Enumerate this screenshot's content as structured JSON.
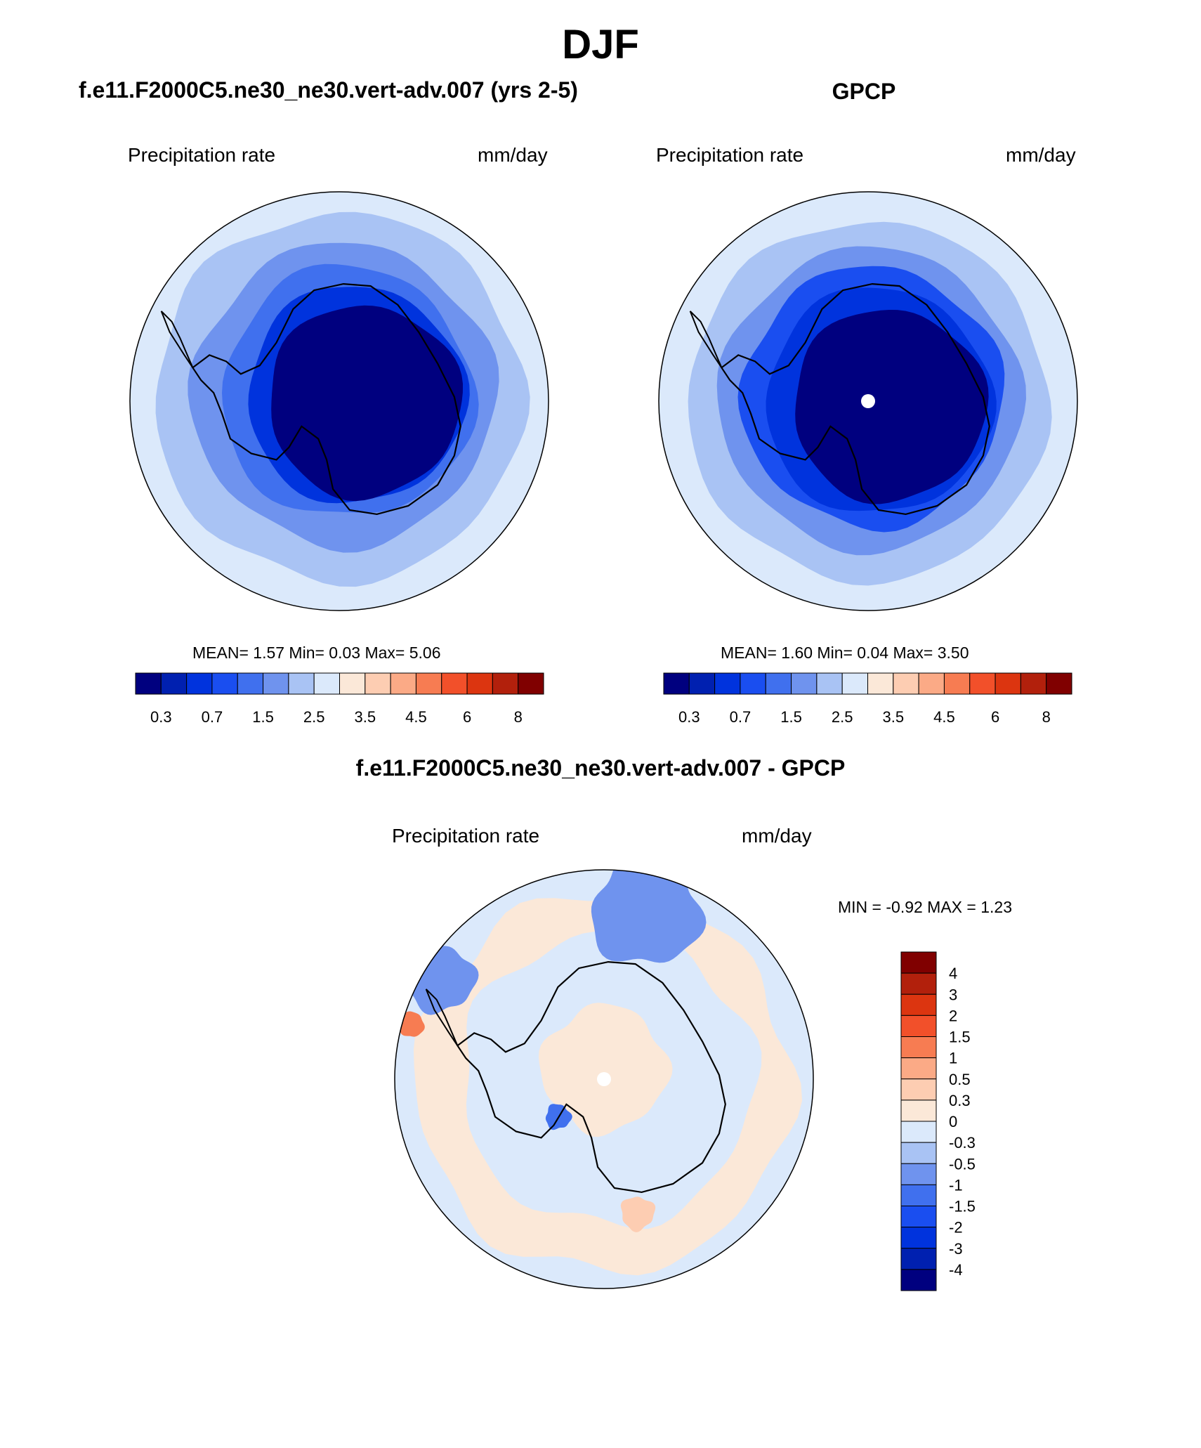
{
  "title": "DJF",
  "panels": [
    {
      "title": "f.e11.F2000C5.ne30_ne30.vert-adv.007 (yrs 2-5)",
      "left_label": "Precipitation rate",
      "right_label": "mm/day",
      "stats": "MEAN=   1.57  Min=   0.03  Max=   5.06"
    },
    {
      "title": "GPCP",
      "left_label": "Precipitation rate",
      "right_label": "mm/day",
      "stats": "MEAN=   1.60  Min=   0.04  Max=   3.50"
    },
    {
      "title": "f.e11.F2000C5.ne30_ne30.vert-adv.007 - GPCP",
      "left_label": "Precipitation rate",
      "right_label": "mm/day",
      "stats": "MIN =  -0.92 MAX =   1.23"
    }
  ],
  "colors": {
    "abs_scale": [
      "#00007f",
      "#0020b0",
      "#0033dd",
      "#1a4ef0",
      "#4070ee",
      "#6f93ee",
      "#a9c3f4",
      "#dbe9fb",
      "#fbe8d8",
      "#fdcdb2",
      "#fbaa86",
      "#f77c52",
      "#f2502a",
      "#dc3510",
      "#b2200c",
      "#800000"
    ],
    "diff_scale": [
      "#00007f",
      "#0020b0",
      "#0033dd",
      "#1a4ef0",
      "#4070ee",
      "#6f93ee",
      "#a9c3f4",
      "#dbe9fb",
      "#fbe8d8",
      "#fdcdb2",
      "#fbaa86",
      "#f77c52",
      "#f2502a",
      "#dc3510",
      "#b2200c",
      "#800000"
    ],
    "coastline": "#000000",
    "pole_marker": "#ffffff"
  },
  "chart_data": [
    {
      "type": "heatmap",
      "projection": "south-polar-stereographic",
      "title": "f.e11.F2000C5.ne30_ne30.vert-adv.007 (yrs 2-5)",
      "variable": "Precipitation rate",
      "units": "mm/day",
      "mean": 1.57,
      "min": 0.03,
      "max": 5.06,
      "levels": [
        0.3,
        0.5,
        0.7,
        1,
        1.5,
        2,
        2.5,
        3,
        3.5,
        4,
        4.5,
        5,
        6,
        7,
        8
      ],
      "colorbar_ticks": [
        "0.3",
        "0.7",
        "1.5",
        "2.5",
        "3.5",
        "4.5",
        "6",
        "8"
      ],
      "colorbar_orientation": "horizontal"
    },
    {
      "type": "heatmap",
      "projection": "south-polar-stereographic",
      "title": "GPCP",
      "variable": "Precipitation rate",
      "units": "mm/day",
      "mean": 1.6,
      "min": 0.04,
      "max": 3.5,
      "levels": [
        0.3,
        0.5,
        0.7,
        1,
        1.5,
        2,
        2.5,
        3,
        3.5,
        4,
        4.5,
        5,
        6,
        7,
        8
      ],
      "colorbar_ticks": [
        "0.3",
        "0.7",
        "1.5",
        "2.5",
        "3.5",
        "4.5",
        "6",
        "8"
      ],
      "colorbar_orientation": "horizontal"
    },
    {
      "type": "heatmap",
      "projection": "south-polar-stereographic",
      "title": "f.e11.F2000C5.ne30_ne30.vert-adv.007 - GPCP",
      "variable": "Precipitation rate",
      "units": "mm/day",
      "min": -0.92,
      "max": 1.23,
      "levels": [
        -4,
        -3,
        -2,
        -1.5,
        -1,
        -0.5,
        -0.3,
        0,
        0.3,
        0.5,
        1,
        1.5,
        2,
        3,
        4
      ],
      "colorbar_ticks": [
        "4",
        "3",
        "2",
        "1.5",
        "1",
        "0.5",
        "0.3",
        "0",
        "-0.3",
        "-0.5",
        "-1",
        "-1.5",
        "-2",
        "-3",
        "-4"
      ],
      "colorbar_orientation": "vertical"
    }
  ]
}
